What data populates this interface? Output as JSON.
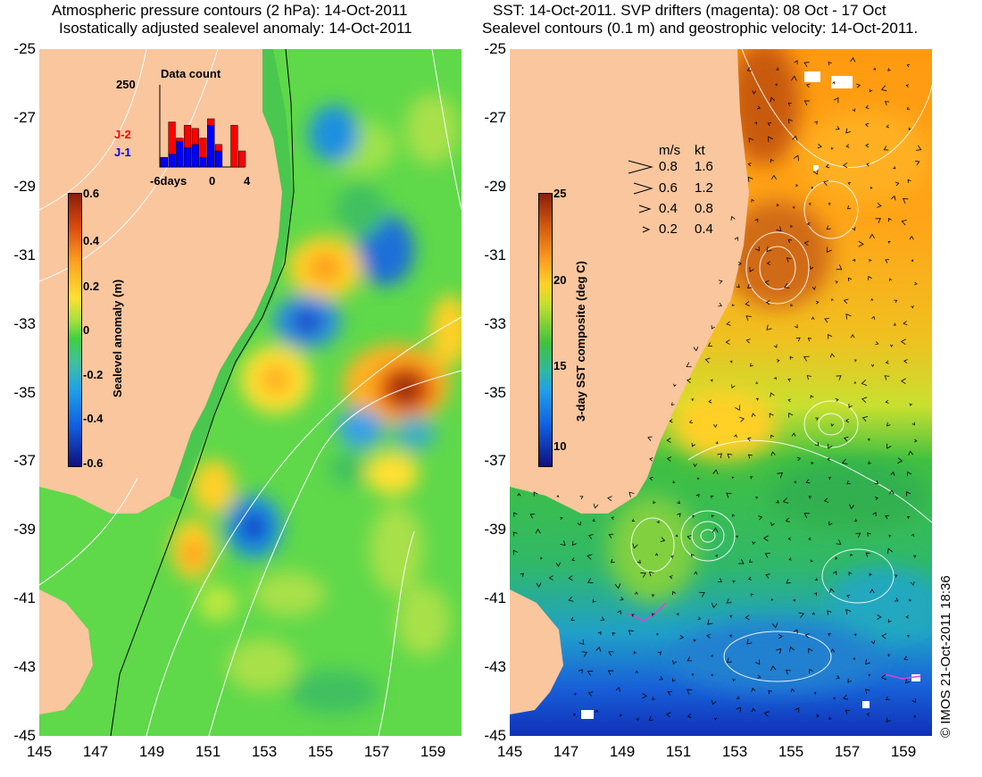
{
  "left_panel": {
    "title_line1": "Atmospheric pressure contours (2 hPa): 14-Oct-2011",
    "title_line2": "Isostatically adjusted sealevel anomaly: 14-Oct-2011",
    "colorbar": {
      "label": "Sealevel anomaly (m)",
      "ticks": [
        "0.6",
        "0.4",
        "0.2",
        "0",
        "-0.2",
        "-0.4",
        "-0.6"
      ]
    },
    "inset": {
      "title": "Data count",
      "ymax_label": "250",
      "series_labels": [
        "J-2",
        "J-1"
      ],
      "series_colors": [
        "#ff0000",
        "#0000ff"
      ],
      "x_labels": [
        "-6days",
        "0",
        "4"
      ],
      "chart_data": {
        "type": "bar",
        "title": "Data count",
        "ylim": [
          0,
          250
        ],
        "series": [
          {
            "name": "J-2",
            "values": [
              30,
              140,
              90,
              130,
              120,
              90,
              150,
              70,
              0,
              130,
              50
            ]
          },
          {
            "name": "J-1",
            "values": [
              30,
              40,
              80,
              60,
              70,
              30,
              130,
              50,
              0,
              0,
              0
            ]
          }
        ]
      }
    }
  },
  "right_panel": {
    "title_line1": "SST: 14-Oct-2011. SVP drifters (magenta): 08 Oct - 17 Oct",
    "title_line2": "Sealevel contours (0.1 m) and geostrophic velocity: 14-Oct-2011.",
    "colorbar": {
      "label": "3-day SST composite (deg C)",
      "ticks": [
        "25",
        "20",
        "15",
        "10"
      ]
    },
    "velocity_legend": {
      "header_ms": "m/s",
      "header_kt": "kt",
      "rows": [
        {
          "ms": "0.8",
          "kt": "1.6"
        },
        {
          "ms": "0.6",
          "kt": "1.2"
        },
        {
          "ms": "0.4",
          "kt": "0.8"
        },
        {
          "ms": "0.2",
          "kt": "0.4"
        }
      ]
    },
    "stamp": "© IMOS 21-Oct-2011 18:36"
  },
  "axes": {
    "lat_ticks": [
      "-25",
      "-27",
      "-29",
      "-31",
      "-33",
      "-35",
      "-37",
      "-39",
      "-41",
      "-43",
      "-45"
    ],
    "lon_ticks": [
      "145",
      "147",
      "149",
      "151",
      "153",
      "155",
      "157",
      "159"
    ]
  },
  "colors": {
    "land": "#f9c69e",
    "ocean_green": "#5fd84a"
  }
}
